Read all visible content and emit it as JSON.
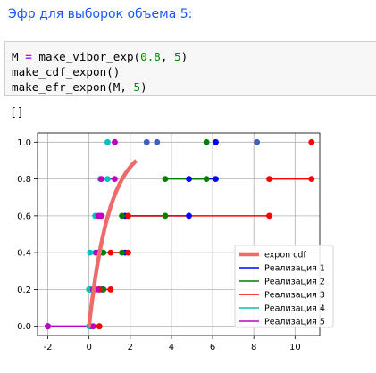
{
  "markdown": {
    "heading": "Эфр для выборок объема 5:"
  },
  "code": {
    "line1": {
      "var": "M",
      "op": "=",
      "fn": "make_vibor_exp(",
      "a": "0.8",
      "sep": ", ",
      "b": "5",
      "close": ")"
    },
    "line2": {
      "fn": "make_cdf_expon()"
    },
    "line3": {
      "fn": "make_efr_expon(M, ",
      "b": "5",
      "close": ")"
    }
  },
  "output": {
    "text": "[]"
  },
  "chart_data": {
    "type": "line",
    "xlim": [
      -2.5,
      11.2
    ],
    "ylim": [
      -0.05,
      1.05
    ],
    "xticks": [
      -2,
      0,
      2,
      4,
      6,
      8,
      10
    ],
    "yticks": [
      0.0,
      0.2,
      0.4,
      0.6,
      0.8,
      1.0
    ],
    "grid": true,
    "legend_placement": "lower-right",
    "cdf": {
      "name": "expon cdf",
      "color": "#f06a6a",
      "x_range": [
        0,
        2.3
      ],
      "rate": 1
    },
    "series": [
      {
        "name": "Реализация 1",
        "color": "#0000ff",
        "points": [
          0.05,
          0.65,
          1.75,
          4.85,
          6.15
        ]
      },
      {
        "name": "Реализация 2",
        "color": "#008000",
        "points": [
          0.5,
          0.7,
          1.6,
          3.7,
          5.7
        ]
      },
      {
        "name": "Реализация 3",
        "color": "#ff0000",
        "points": [
          0.5,
          1.05,
          1.9,
          8.75,
          10.8
        ]
      },
      {
        "name": "Реализация 4",
        "color": "#00c0c0",
        "points": [
          0.0,
          0.05,
          0.3,
          0.55,
          0.9
        ]
      },
      {
        "name": "Реализация 5",
        "color": "#c000c0",
        "points": [
          0.2,
          0.35,
          0.45,
          0.6,
          1.25
        ]
      }
    ],
    "extra_points_on_top": [
      2.8,
      3.3,
      8.15
    ]
  }
}
